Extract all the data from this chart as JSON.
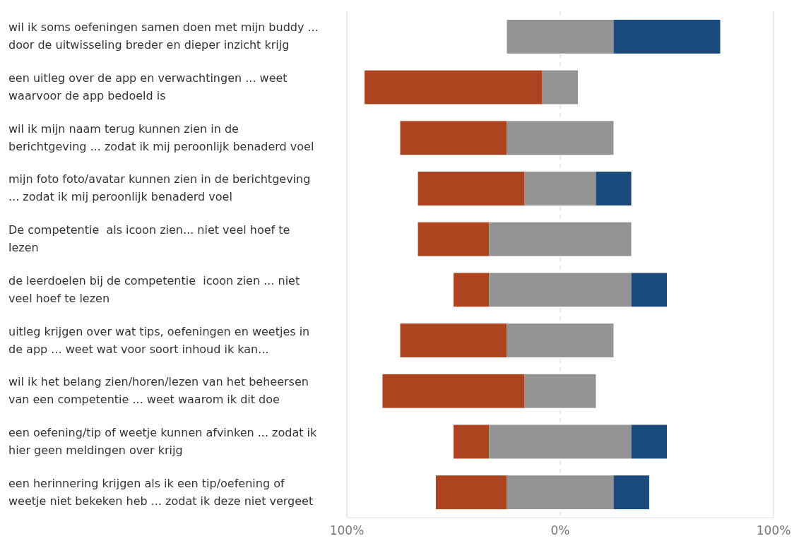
{
  "chart_data": {
    "type": "bar",
    "orientation": "horizontal",
    "categories": [
      "wil ik soms oefeningen samen doen met mijn buddy ... door de uitwisseling breder en dieper inzicht krijg",
      "een uitleg over de app en verwachtingen ... weet waarvoor de app bedoeld is",
      "wil ik mijn naam terug kunnen zien in de berichtgeving ... zodat ik mij peroonlijk benaderd voel",
      "mijn foto foto/avatar kunnen zien in de berichtgeving ... zodat ik mij peroonlijk benaderd voel",
      "De competentie  als icoon zien... niet veel hoef te lezen",
      "de leerdoelen bij de competentie  icoon zien ... niet veel hoef te lezen",
      "uitleg krijgen over wat tips, oefeningen en weetjes in de app ... weet wat voor soort inhoud ik kan...",
      "wil ik het belang zien/horen/lezen van het beheersen van een competentie ... weet waarom ik dit doe",
      "een oefening/tip of weetje kunnen afvinken ... zodat ik hier geen meldingen over krijg",
      "een herinnering krijgen als ik een tip/oefening of weetje niet bekeken heb ... zodat ik deze niet vergeet"
    ],
    "series": [
      {
        "color": "#ad4420",
        "base": [
          null,
          -91.7,
          -75,
          -66.7,
          -66.7,
          -50,
          -75,
          -83.3,
          -50,
          -58.3
        ],
        "values": [
          null,
          83.3,
          50,
          50,
          33.4,
          16.7,
          50,
          66.6,
          16.7,
          33.3
        ]
      },
      {
        "color": "#939393",
        "base": [
          -25,
          -8.4,
          -25,
          -16.7,
          -33.3,
          -33.3,
          -25,
          -16.7,
          -33.3,
          -25
        ],
        "values": [
          50,
          16.7,
          50,
          33.4,
          66.6,
          66.6,
          50,
          33.4,
          66.6,
          50
        ]
      },
      {
        "color": "#1b4a7c",
        "base": [
          25,
          null,
          null,
          16.7,
          null,
          33.3,
          null,
          null,
          33.3,
          25
        ],
        "values": [
          50,
          null,
          null,
          16.6,
          null,
          16.7,
          null,
          null,
          16.7,
          16.7
        ]
      }
    ],
    "xlim": [
      -100,
      100
    ],
    "xticks": [
      {
        "value": -100,
        "label": "100%"
      },
      {
        "value": 0,
        "label": "0%"
      },
      {
        "value": 100,
        "label": "100%"
      }
    ],
    "grid": "x"
  }
}
